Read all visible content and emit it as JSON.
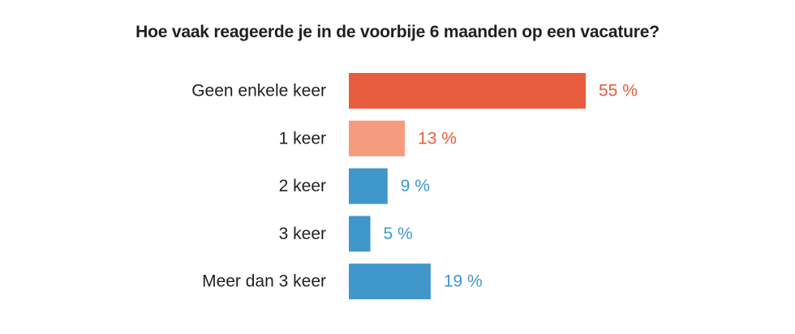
{
  "chart_data": {
    "type": "bar",
    "orientation": "horizontal",
    "title": "Hoe vaak reageerde je in de voorbije 6 maanden op een vacature?",
    "categories": [
      "Geen enkele keer",
      "1 keer",
      "2 keer",
      "3 keer",
      "Meer dan 3 keer"
    ],
    "values": [
      55,
      13,
      9,
      5,
      19
    ],
    "value_labels": [
      "55 %",
      "13 %",
      "9 %",
      "5 %",
      "19 %"
    ],
    "unit": "%",
    "xlim": [
      0,
      100
    ],
    "grid": false,
    "legend": "none",
    "bar_colors": [
      "#e85d3d",
      "#f59c7e",
      "#3f97cc",
      "#3f97cc",
      "#3f97cc"
    ],
    "label_colors": [
      "#e85d3d",
      "#e85d3d",
      "#3f97cc",
      "#3f97cc",
      "#3f97cc"
    ]
  }
}
